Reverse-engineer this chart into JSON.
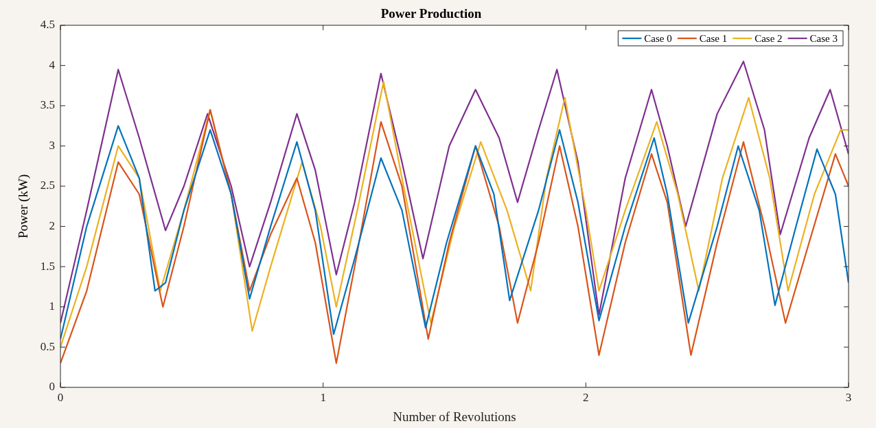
{
  "chart_data": {
    "type": "line",
    "title": "Power Production",
    "xlabel": "Number of Revolutions",
    "ylabel": "Power (kW)",
    "xlim": [
      0,
      3
    ],
    "xticks": [
      0,
      1,
      2,
      3
    ],
    "ylim": [
      0,
      4.5
    ],
    "yticks": [
      0,
      0.5,
      1,
      1.5,
      2,
      2.5,
      3,
      3.5,
      4,
      4.5
    ],
    "grid": false,
    "legend": "top right",
    "marker": "none",
    "line_style": "solid",
    "series": [
      {
        "name": "Case 0",
        "color": "#0072bd",
        "x": [
          0,
          0.1,
          0.22,
          0.3,
          0.36,
          0.4,
          0.47,
          0.57,
          0.65,
          0.72,
          0.8,
          0.9,
          0.97,
          1.04,
          1.12,
          1.22,
          1.3,
          1.39,
          1.47,
          1.58,
          1.65,
          1.71,
          1.82,
          1.9,
          1.97,
          2.05,
          2.15,
          2.26,
          2.31,
          2.39,
          2.5,
          2.58,
          2.66,
          2.72,
          2.8,
          2.88,
          2.95,
          3
        ],
        "values": [
          0.6,
          2,
          3.25,
          2.6,
          1.2,
          1.3,
          2.2,
          3.2,
          2.4,
          1.1,
          2,
          3.05,
          2.2,
          0.66,
          1.6,
          2.85,
          2.2,
          0.74,
          1.8,
          3,
          2.4,
          1.08,
          2.2,
          3.2,
          2.3,
          0.83,
          2,
          3.1,
          2.4,
          0.8,
          2,
          3,
          2.2,
          1.02,
          2,
          2.96,
          2.4,
          1.3
        ]
      },
      {
        "name": "Case 1",
        "color": "#d95319",
        "x": [
          0,
          0.1,
          0.22,
          0.3,
          0.39,
          0.47,
          0.57,
          0.65,
          0.72,
          0.8,
          0.9,
          0.97,
          1.05,
          1.12,
          1.22,
          1.3,
          1.4,
          1.48,
          1.58,
          1.67,
          1.74,
          1.82,
          1.9,
          1.97,
          2.05,
          2.15,
          2.25,
          2.31,
          2.4,
          2.5,
          2.6,
          2.68,
          2.76,
          2.85,
          2.95,
          3
        ],
        "values": [
          0.3,
          1.2,
          2.8,
          2.4,
          1,
          2,
          3.45,
          2.4,
          1.2,
          1.9,
          2.6,
          1.8,
          0.3,
          1.5,
          3.3,
          2.5,
          0.6,
          1.8,
          3,
          2,
          0.8,
          1.8,
          3,
          2,
          0.4,
          1.8,
          2.9,
          2.3,
          0.4,
          1.8,
          3.05,
          2,
          0.8,
          1.8,
          2.9,
          2.5
        ]
      },
      {
        "name": "Case 2",
        "color": "#edb120",
        "x": [
          0,
          0.1,
          0.22,
          0.3,
          0.38,
          0.47,
          0.57,
          0.65,
          0.73,
          0.8,
          0.92,
          0.99,
          1.05,
          1.13,
          1.23,
          1.3,
          1.41,
          1.5,
          1.6,
          1.7,
          1.79,
          1.85,
          1.92,
          2,
          2.05,
          2.15,
          2.27,
          2.35,
          2.43,
          2.52,
          2.62,
          2.7,
          2.77,
          2.87,
          2.97,
          3
        ],
        "values": [
          0.5,
          1.5,
          3,
          2.6,
          1.2,
          2.2,
          3.45,
          2.4,
          0.7,
          1.5,
          2.8,
          2,
          1,
          2.2,
          3.8,
          2.6,
          0.8,
          2,
          3.05,
          2.2,
          1.2,
          2.6,
          3.6,
          2.2,
          1.2,
          2.2,
          3.3,
          2.4,
          1.2,
          2.6,
          3.6,
          2.6,
          1.2,
          2.4,
          3.2,
          3.2
        ]
      },
      {
        "name": "Case 3",
        "color": "#7e2f8e",
        "x": [
          0,
          0.1,
          0.22,
          0.3,
          0.4,
          0.47,
          0.56,
          0.65,
          0.72,
          0.8,
          0.9,
          0.97,
          1.05,
          1.12,
          1.22,
          1.3,
          1.38,
          1.48,
          1.58,
          1.67,
          1.74,
          1.82,
          1.89,
          1.97,
          2.05,
          2.15,
          2.25,
          2.31,
          2.38,
          2.5,
          2.6,
          2.68,
          2.74,
          2.85,
          2.93,
          3
        ],
        "values": [
          0.8,
          2.2,
          3.95,
          3.1,
          1.95,
          2.5,
          3.4,
          2.5,
          1.5,
          2.3,
          3.4,
          2.7,
          1.4,
          2.3,
          3.9,
          2.8,
          1.6,
          3,
          3.7,
          3.1,
          2.3,
          3.2,
          3.95,
          2.8,
          0.9,
          2.6,
          3.7,
          3,
          2,
          3.4,
          4.05,
          3.2,
          1.9,
          3.1,
          3.7,
          2.9
        ]
      }
    ]
  }
}
